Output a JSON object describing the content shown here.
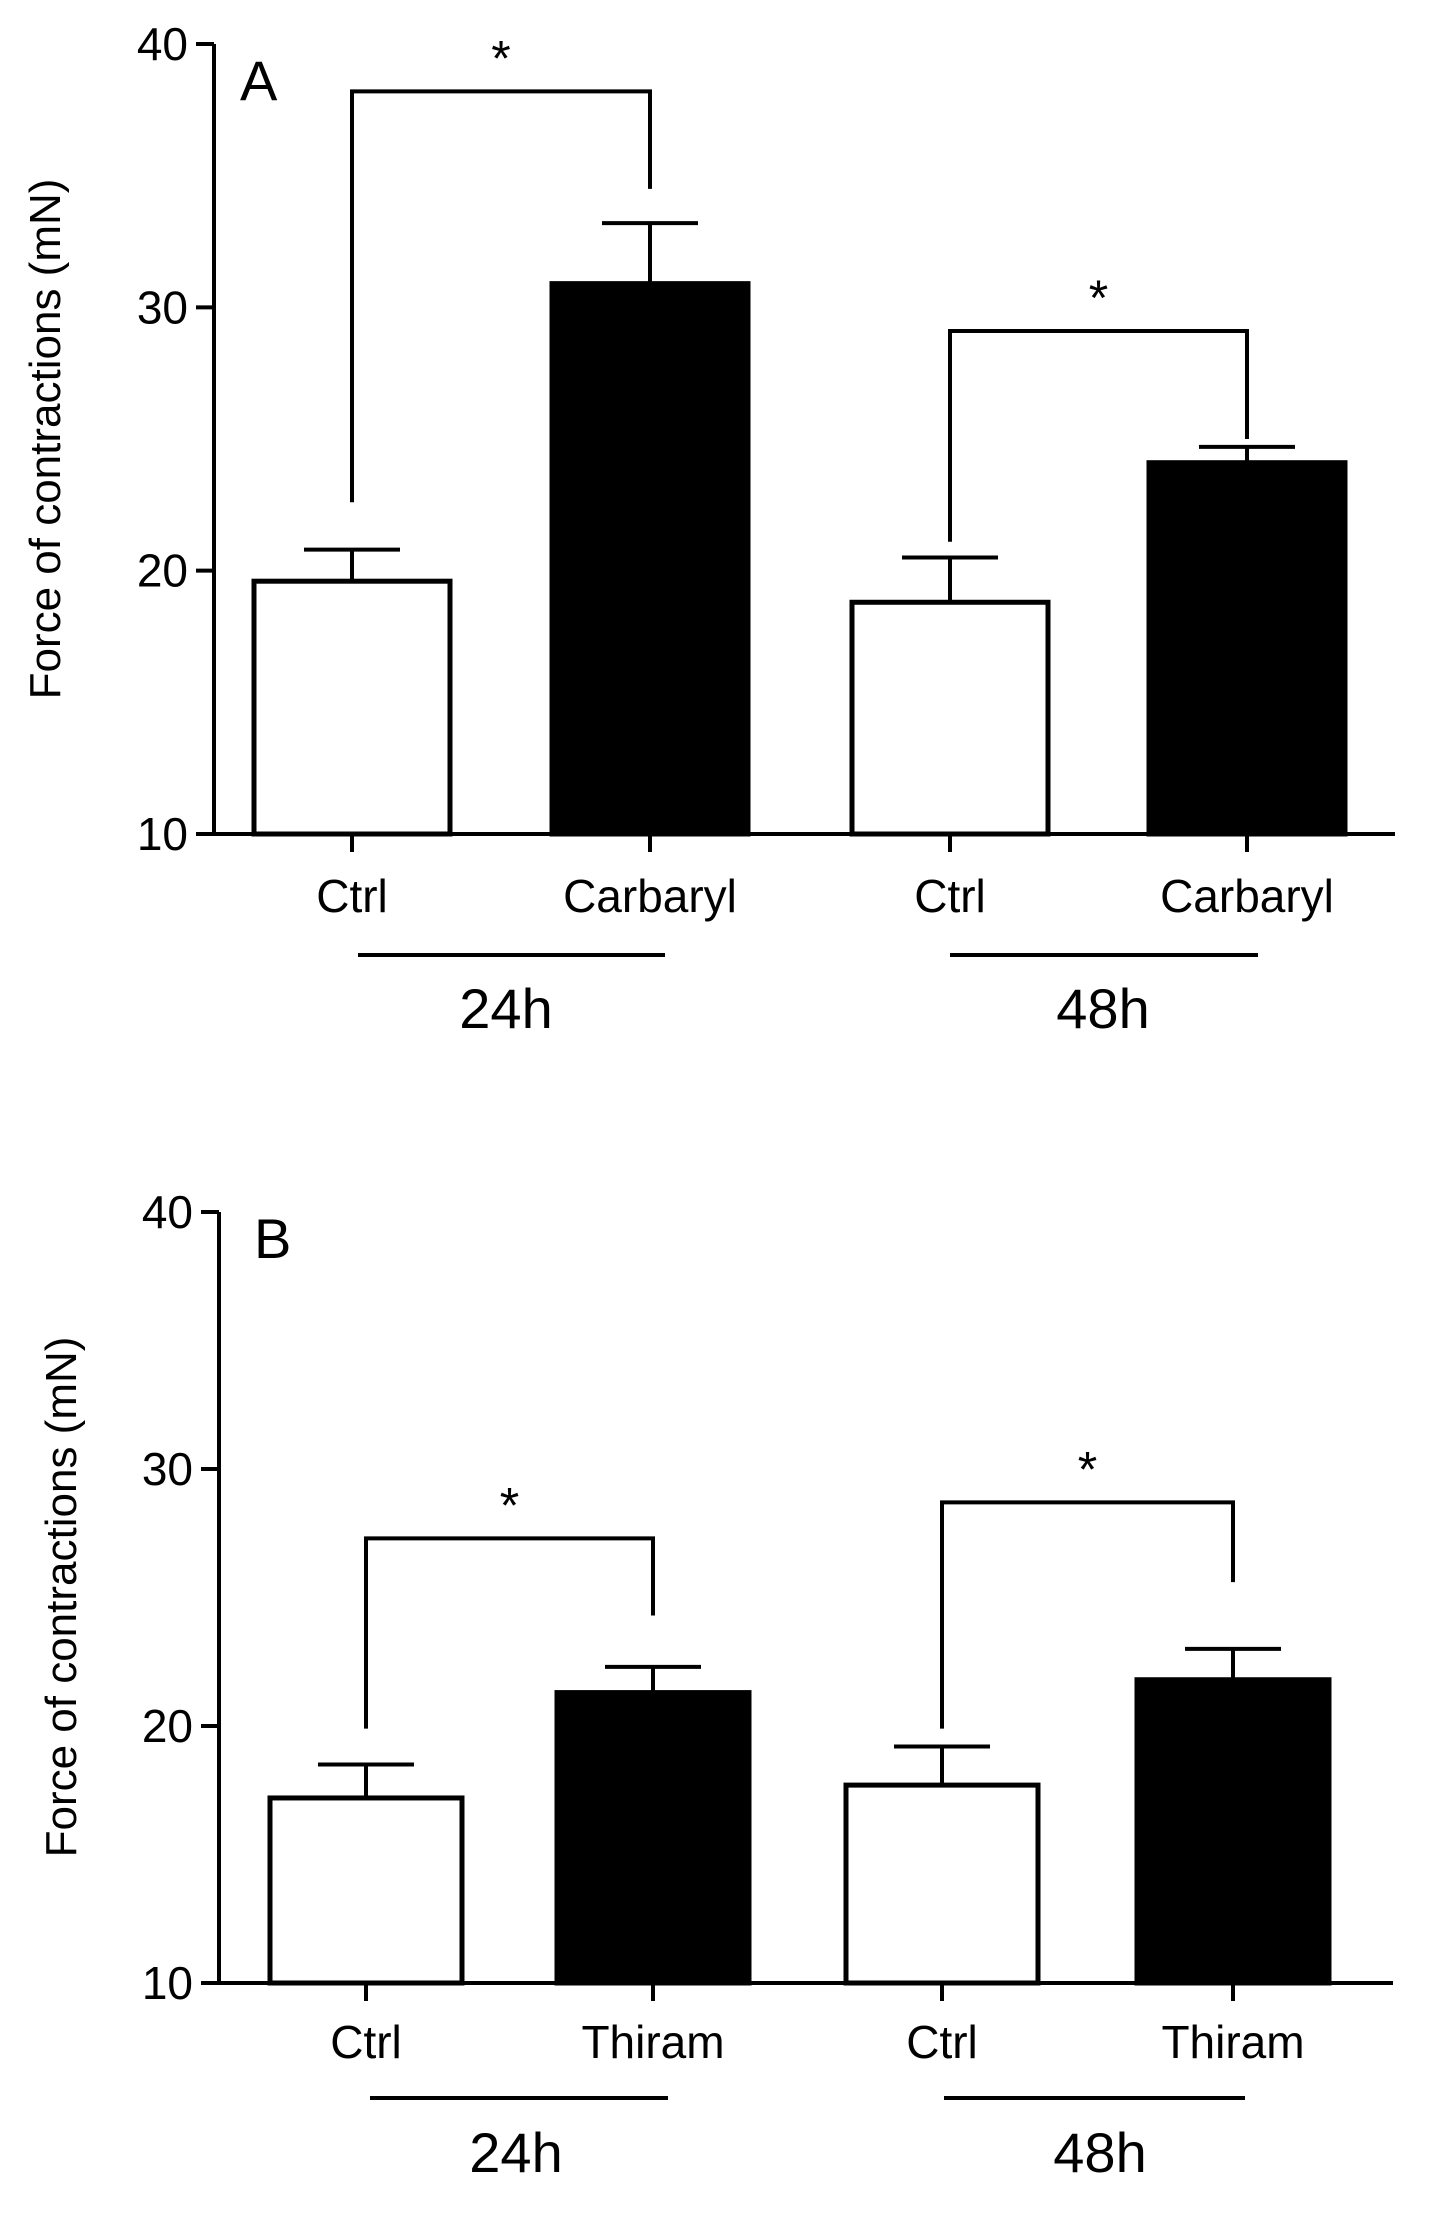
{
  "chart_data": [
    {
      "type": "bar",
      "panel_label": "A",
      "ylabel": "Force of contractions (mN)",
      "ylim": [
        10,
        40
      ],
      "yticks": [
        10,
        20,
        30,
        40
      ],
      "categories": [
        "Ctrl",
        "Carbaryl",
        "Ctrl",
        "Carbaryl"
      ],
      "groups": [
        "24h",
        "48h"
      ],
      "values": [
        19.6,
        30.9,
        18.8,
        24.1
      ],
      "errors": [
        1.2,
        2.3,
        1.7,
        0.6
      ],
      "fill_colors": [
        "#ffffff",
        "#000000",
        "#ffffff",
        "#000000"
      ],
      "significance": [
        {
          "label": "*",
          "from": 0,
          "to": 1,
          "y": 38.2,
          "left_start": 22.6,
          "right_start": 34.5
        },
        {
          "label": "*",
          "from": 2,
          "to": 3,
          "y": 29.1,
          "left_start": 21.1,
          "right_start": 25.0
        }
      ]
    },
    {
      "type": "bar",
      "panel_label": "B",
      "ylabel": "Force of contractions (mN)",
      "ylim": [
        10,
        40
      ],
      "yticks": [
        10,
        20,
        30,
        40
      ],
      "categories": [
        "Ctrl",
        "Thiram",
        "Ctrl",
        "Thiram"
      ],
      "groups": [
        "24h",
        "48h"
      ],
      "values": [
        17.2,
        21.3,
        17.7,
        21.8
      ],
      "errors": [
        1.3,
        1.0,
        1.5,
        1.2
      ],
      "fill_colors": [
        "#ffffff",
        "#000000",
        "#ffffff",
        "#000000"
      ],
      "significance": [
        {
          "label": "*",
          "from": 0,
          "to": 1,
          "y": 27.3,
          "left_start": 19.9,
          "right_start": 24.3
        },
        {
          "label": "*",
          "from": 2,
          "to": 3,
          "y": 28.7,
          "left_start": 19.9,
          "right_start": 25.6
        }
      ]
    }
  ]
}
